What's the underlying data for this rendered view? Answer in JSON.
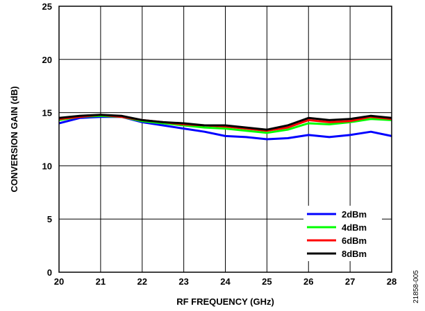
{
  "chart_data": {
    "type": "line",
    "title": "",
    "xlabel": "RF FREQUENCY (GHz)",
    "ylabel": "CONVERSION GAIN (dB)",
    "xlim": [
      20,
      28
    ],
    "ylim": [
      0,
      25
    ],
    "x_ticks": [
      "20",
      "21",
      "22",
      "23",
      "24",
      "25",
      "26",
      "27",
      "28"
    ],
    "y_ticks": [
      "0",
      "5",
      "10",
      "15",
      "20",
      "25"
    ],
    "grid": true,
    "legend_position": "bottom-right",
    "figure_id": "21858-005",
    "x": [
      20,
      20.5,
      21,
      21.5,
      22,
      22.5,
      23,
      23.5,
      24,
      24.5,
      25,
      25.5,
      26,
      26.5,
      27,
      27.5,
      28
    ],
    "series": [
      {
        "name": "2dBm",
        "color": "#0000ff",
        "values": [
          14.0,
          14.5,
          14.6,
          14.6,
          14.1,
          13.8,
          13.5,
          13.2,
          12.8,
          12.7,
          12.5,
          12.6,
          12.9,
          12.7,
          12.9,
          13.2,
          12.8
        ]
      },
      {
        "name": "4dBm",
        "color": "#00ff00",
        "values": [
          14.3,
          14.6,
          14.7,
          14.6,
          14.2,
          14.0,
          13.8,
          13.6,
          13.5,
          13.3,
          13.1,
          13.4,
          14.0,
          13.9,
          14.1,
          14.4,
          14.3
        ]
      },
      {
        "name": "6dBm",
        "color": "#ff0000",
        "values": [
          14.4,
          14.6,
          14.8,
          14.6,
          14.3,
          14.1,
          13.9,
          13.8,
          13.7,
          13.5,
          13.3,
          13.6,
          14.3,
          14.1,
          14.2,
          14.6,
          14.4
        ]
      },
      {
        "name": "8dBm",
        "color": "#000000",
        "values": [
          14.5,
          14.7,
          14.8,
          14.7,
          14.3,
          14.1,
          14.0,
          13.8,
          13.8,
          13.6,
          13.4,
          13.8,
          14.5,
          14.3,
          14.4,
          14.7,
          14.5
        ]
      }
    ]
  }
}
